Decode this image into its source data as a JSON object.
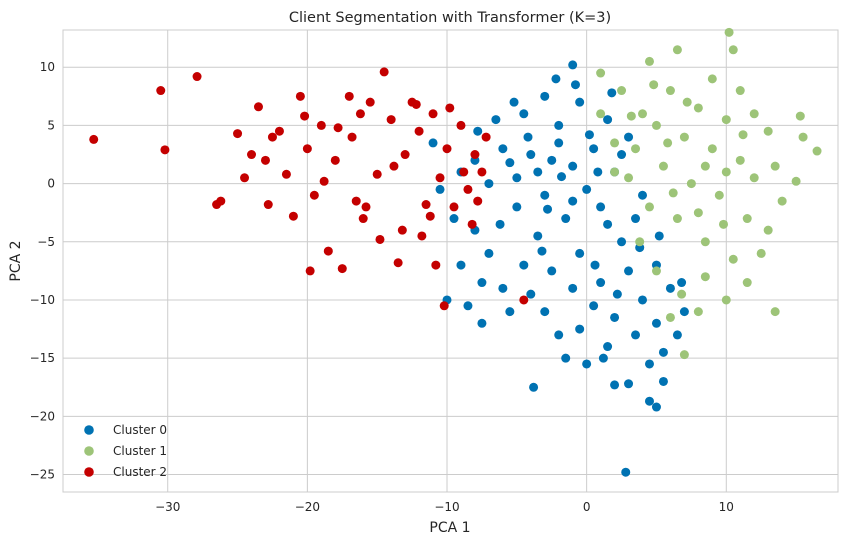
{
  "chart_data": {
    "type": "scatter",
    "title": "Client Segmentation with Transformer (K=3)",
    "xlabel": "PCA 1",
    "ylabel": "PCA 2",
    "xlim": [
      -37.5,
      18
    ],
    "ylim": [
      -26.5,
      13.2
    ],
    "xticks": [
      -30,
      -20,
      -10,
      0,
      10
    ],
    "yticks": [
      -25,
      -20,
      -15,
      -10,
      -5,
      0,
      5,
      10
    ],
    "grid": true,
    "legend_position": "lower-left",
    "series": [
      {
        "name": "Cluster 0",
        "color": "#0072B2",
        "points": [
          [
            -2.5,
            2.0
          ],
          [
            -1.0,
            1.5
          ],
          [
            0.5,
            3.0
          ],
          [
            1.0,
            -2.0
          ],
          [
            -3.0,
            -1.0
          ],
          [
            -4.0,
            2.5
          ],
          [
            -1.5,
            -3.0
          ],
          [
            0.0,
            -0.5
          ],
          [
            2.0,
            1.0
          ],
          [
            -5.0,
            0.5
          ],
          [
            -6.0,
            3.0
          ],
          [
            -2.0,
            5.0
          ],
          [
            1.5,
            5.5
          ],
          [
            -3.5,
            -4.5
          ],
          [
            -0.5,
            -6.0
          ],
          [
            2.5,
            -5.0
          ],
          [
            3.5,
            -3.0
          ],
          [
            -4.5,
            -7.0
          ],
          [
            -1.0,
            -9.0
          ],
          [
            1.0,
            -8.5
          ],
          [
            3.0,
            -7.5
          ],
          [
            4.0,
            -10.0
          ],
          [
            2.0,
            -11.5
          ],
          [
            -0.5,
            -12.5
          ],
          [
            1.5,
            -14.0
          ],
          [
            3.5,
            -13.0
          ],
          [
            5.0,
            -12.0
          ],
          [
            -2.0,
            -13.0
          ],
          [
            -3.0,
            -11.0
          ],
          [
            -6.0,
            -9.0
          ],
          [
            -7.0,
            -6.0
          ],
          [
            -8.0,
            -4.0
          ],
          [
            -9.0,
            -7.0
          ],
          [
            -10.0,
            -10.0
          ],
          [
            -7.5,
            -12.0
          ],
          [
            -3.8,
            -17.5
          ],
          [
            -1.0,
            10.2
          ],
          [
            2.8,
            -24.8
          ],
          [
            4.5,
            -18.7
          ],
          [
            5.0,
            -19.2
          ],
          [
            5.5,
            -17.0
          ],
          [
            3.0,
            -17.2
          ],
          [
            2.0,
            -17.3
          ],
          [
            1.2,
            -15.0
          ],
          [
            0.0,
            -15.5
          ],
          [
            -1.5,
            -15.0
          ],
          [
            4.5,
            -15.5
          ],
          [
            5.5,
            -14.5
          ],
          [
            6.5,
            -13.0
          ],
          [
            7.0,
            -11.0
          ],
          [
            6.0,
            -9.0
          ],
          [
            5.0,
            -7.0
          ],
          [
            -5.0,
            -2.0
          ],
          [
            -7.0,
            0.0
          ],
          [
            -8.0,
            2.0
          ],
          [
            -6.5,
            5.5
          ],
          [
            -4.5,
            6.0
          ],
          [
            -3.0,
            7.5
          ],
          [
            -0.5,
            7.0
          ],
          [
            -9.5,
            -3.0
          ],
          [
            -9.0,
            1.0
          ],
          [
            -10.5,
            -0.5
          ],
          [
            -11.0,
            3.5
          ],
          [
            -2.5,
            -7.5
          ],
          [
            0.5,
            -10.5
          ],
          [
            -4.0,
            -9.5
          ],
          [
            -5.5,
            -11.0
          ],
          [
            3.0,
            4.0
          ],
          [
            4.0,
            -1.0
          ],
          [
            1.5,
            -3.5
          ],
          [
            -2.0,
            3.5
          ],
          [
            -3.5,
            1.0
          ],
          [
            2.5,
            2.5
          ],
          [
            -1.0,
            -1.5
          ],
          [
            0.8,
            1.0
          ],
          [
            -2.8,
            -2.2
          ],
          [
            -1.8,
            0.6
          ],
          [
            0.2,
            4.2
          ],
          [
            -4.2,
            4.0
          ],
          [
            -5.5,
            1.8
          ],
          [
            -6.2,
            -3.5
          ],
          [
            -3.2,
            -5.8
          ],
          [
            0.6,
            -7.0
          ],
          [
            2.2,
            -9.5
          ],
          [
            3.8,
            -5.5
          ],
          [
            5.2,
            -4.5
          ],
          [
            -7.5,
            -8.5
          ],
          [
            -8.5,
            -10.5
          ],
          [
            6.8,
            -8.5
          ],
          [
            -0.8,
            8.5
          ],
          [
            1.8,
            7.8
          ],
          [
            -2.2,
            9.0
          ],
          [
            -5.2,
            7.0
          ],
          [
            -7.8,
            4.5
          ]
        ]
      },
      {
        "name": "Cluster 1",
        "color": "#9DC478",
        "points": [
          [
            5.0,
            5.0
          ],
          [
            7.0,
            4.0
          ],
          [
            8.0,
            6.5
          ],
          [
            6.0,
            8.0
          ],
          [
            4.0,
            6.0
          ],
          [
            9.0,
            3.0
          ],
          [
            10.0,
            5.5
          ],
          [
            11.0,
            2.0
          ],
          [
            12.0,
            0.5
          ],
          [
            13.5,
            1.5
          ],
          [
            14.0,
            -1.5
          ],
          [
            15.0,
            0.2
          ],
          [
            15.5,
            4.0
          ],
          [
            15.3,
            5.8
          ],
          [
            16.5,
            2.8
          ],
          [
            10.5,
            11.5
          ],
          [
            10.2,
            13.0
          ],
          [
            6.5,
            11.5
          ],
          [
            4.5,
            10.5
          ],
          [
            1.0,
            9.5
          ],
          [
            2.5,
            8.0
          ],
          [
            3.5,
            3.0
          ],
          [
            5.5,
            1.5
          ],
          [
            7.5,
            0.0
          ],
          [
            9.5,
            -1.0
          ],
          [
            11.5,
            -3.0
          ],
          [
            13.0,
            -4.0
          ],
          [
            12.5,
            -6.0
          ],
          [
            10.5,
            -6.5
          ],
          [
            8.5,
            -5.0
          ],
          [
            6.5,
            -3.0
          ],
          [
            4.5,
            -2.0
          ],
          [
            3.0,
            0.5
          ],
          [
            2.0,
            3.5
          ],
          [
            1.0,
            6.0
          ],
          [
            3.8,
            -5.0
          ],
          [
            5.0,
            -7.5
          ],
          [
            6.8,
            -9.5
          ],
          [
            8.5,
            -8.0
          ],
          [
            10.0,
            -10.0
          ],
          [
            11.5,
            -8.5
          ],
          [
            13.5,
            -11.0
          ],
          [
            7.0,
            -14.7
          ],
          [
            6.0,
            -11.5
          ],
          [
            8.0,
            -11.0
          ],
          [
            9.0,
            9.0
          ],
          [
            11.0,
            8.0
          ],
          [
            12.0,
            6.0
          ],
          [
            13.0,
            4.5
          ],
          [
            8.5,
            1.5
          ],
          [
            7.2,
            7.0
          ],
          [
            5.8,
            3.5
          ],
          [
            4.8,
            8.5
          ],
          [
            6.2,
            -0.8
          ],
          [
            9.8,
            -3.5
          ],
          [
            11.2,
            4.2
          ],
          [
            3.2,
            5.8
          ],
          [
            2.0,
            1.0
          ],
          [
            8.0,
            -2.5
          ],
          [
            10.0,
            1.0
          ]
        ]
      },
      {
        "name": "Cluster 2",
        "color": "#C40000",
        "points": [
          [
            -35.3,
            3.8
          ],
          [
            -30.5,
            8.0
          ],
          [
            -30.2,
            2.9
          ],
          [
            -27.9,
            9.2
          ],
          [
            -26.2,
            -1.5
          ],
          [
            -26.5,
            -1.8
          ],
          [
            -25.0,
            4.3
          ],
          [
            -24.5,
            0.5
          ],
          [
            -23.5,
            6.6
          ],
          [
            -23.0,
            2.0
          ],
          [
            -22.8,
            -1.8
          ],
          [
            -22.0,
            4.5
          ],
          [
            -21.5,
            0.8
          ],
          [
            -21.0,
            -2.8
          ],
          [
            -20.5,
            7.5
          ],
          [
            -20.0,
            3.0
          ],
          [
            -19.8,
            -7.5
          ],
          [
            -19.5,
            -1.0
          ],
          [
            -19.0,
            5.0
          ],
          [
            -18.5,
            -5.8
          ],
          [
            -18.0,
            2.0
          ],
          [
            -17.5,
            -7.3
          ],
          [
            -17.0,
            7.5
          ],
          [
            -16.8,
            4.0
          ],
          [
            -16.5,
            -1.5
          ],
          [
            -16.0,
            -3.0
          ],
          [
            -15.5,
            7.0
          ],
          [
            -15.0,
            0.8
          ],
          [
            -14.8,
            -4.8
          ],
          [
            -14.5,
            9.6
          ],
          [
            -14.0,
            5.5
          ],
          [
            -13.5,
            -6.8
          ],
          [
            -13.0,
            2.5
          ],
          [
            -12.5,
            7.0
          ],
          [
            -12.0,
            4.5
          ],
          [
            -11.8,
            -4.5
          ],
          [
            -11.5,
            -1.8
          ],
          [
            -11.0,
            6.0
          ],
          [
            -10.8,
            -7.0
          ],
          [
            -10.5,
            0.5
          ],
          [
            -10.2,
            -10.5
          ],
          [
            -10.0,
            3.0
          ],
          [
            -9.5,
            -2.0
          ],
          [
            -9.0,
            5.0
          ],
          [
            -8.8,
            1.0
          ],
          [
            -8.5,
            -0.5
          ],
          [
            -8.0,
            2.5
          ],
          [
            -7.8,
            -1.5
          ],
          [
            -7.5,
            1.0
          ],
          [
            -7.2,
            4.0
          ],
          [
            -13.8,
            1.5
          ],
          [
            -17.8,
            4.8
          ],
          [
            -22.5,
            4.0
          ],
          [
            -24.0,
            2.5
          ],
          [
            -18.8,
            0.2
          ],
          [
            -15.8,
            -2.0
          ],
          [
            -13.2,
            -4.0
          ],
          [
            -11.2,
            -2.8
          ],
          [
            -9.8,
            6.5
          ],
          [
            -8.2,
            -3.5
          ],
          [
            -20.2,
            5.8
          ],
          [
            -16.2,
            6.0
          ],
          [
            -12.2,
            6.8
          ],
          [
            -4.5,
            -10.0
          ]
        ]
      }
    ]
  }
}
